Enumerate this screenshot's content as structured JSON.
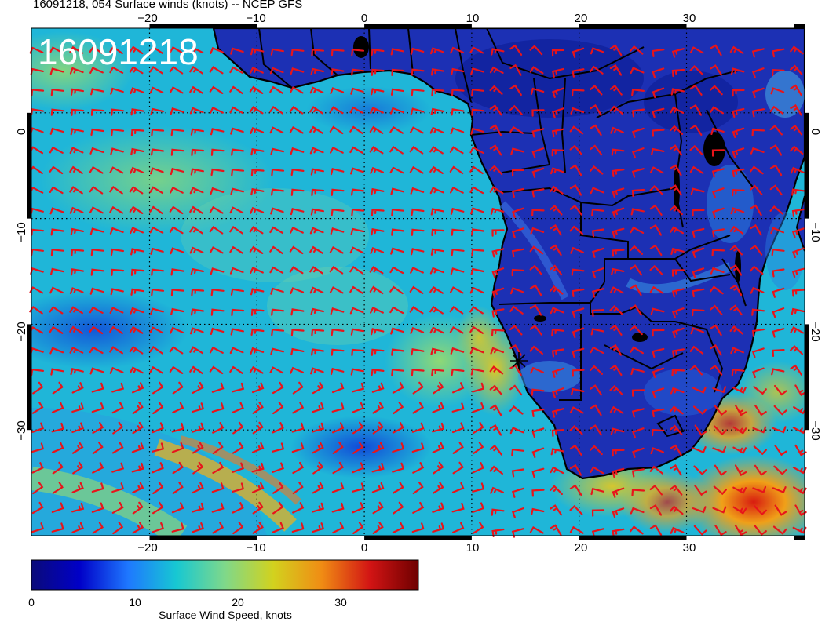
{
  "title": "16091218, 054 Surface winds (knots) -- NCEP GFS",
  "stamp": "16091218",
  "map": {
    "lon_range": [
      -31,
      41
    ],
    "lat_range": [
      8,
      -40
    ],
    "top_lon_labels": [
      "−20",
      "−10",
      "0",
      "10",
      "20",
      "30"
    ],
    "bottom_lon_labels": [
      "−20",
      "−10",
      "0",
      "10",
      "20",
      "30"
    ],
    "left_lat_labels": [
      "0",
      "−10",
      "−20",
      "−30"
    ],
    "right_lat_labels": [
      "0",
      "−10",
      "−20",
      "−30"
    ],
    "wind_barb_color": "#e8141a",
    "coast_color": "#000000"
  },
  "colorbar": {
    "label": "Surface Wind Speed, knots",
    "ticks": [
      "0",
      "10",
      "20",
      "30"
    ],
    "range": [
      0,
      37
    ],
    "colors": [
      "#0a0a7a",
      "#0000c8",
      "#1e78ff",
      "#17c8d2",
      "#7fd88a",
      "#d2d21e",
      "#f08c14",
      "#d21414",
      "#6e0000"
    ]
  }
}
